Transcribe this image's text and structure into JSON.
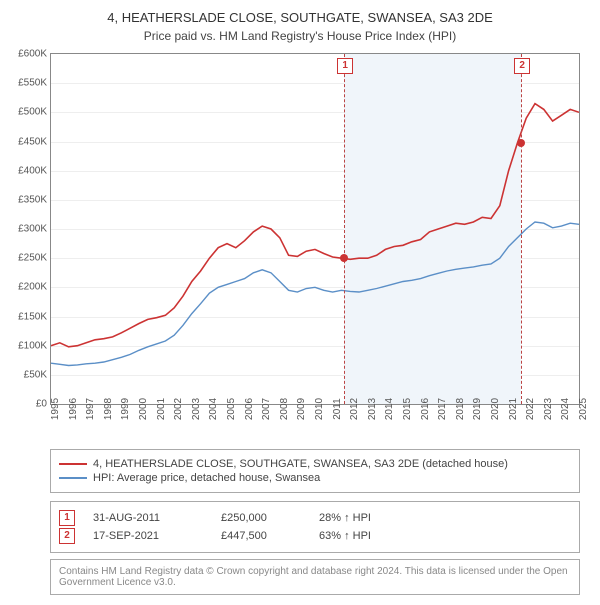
{
  "title": "4, HEATHERSLADE CLOSE, SOUTHGATE, SWANSEA, SA3 2DE",
  "subtitle": "Price paid vs. HM Land Registry's House Price Index (HPI)",
  "chart": {
    "type": "line",
    "xlim": [
      1995,
      2025
    ],
    "ylim": [
      0,
      600000
    ],
    "ytick_step": 50000,
    "y_ticks": [
      "£0",
      "£50K",
      "£100K",
      "£150K",
      "£200K",
      "£250K",
      "£300K",
      "£350K",
      "£400K",
      "£450K",
      "£500K",
      "£550K",
      "£600K"
    ],
    "x_labels": [
      "1995",
      "1996",
      "1997",
      "1998",
      "1999",
      "2000",
      "2001",
      "2002",
      "2003",
      "2004",
      "2005",
      "2006",
      "2007",
      "2008",
      "2009",
      "2010",
      "2011",
      "2012",
      "2013",
      "2014",
      "2015",
      "2016",
      "2017",
      "2018",
      "2019",
      "2020",
      "2021",
      "2022",
      "2023",
      "2024",
      "2025"
    ],
    "background_color": "#ffffff",
    "grid_color": "#eeeeee",
    "axis_color": "#888888",
    "highlight_band": {
      "x_start": 2011.66,
      "x_end": 2021.71,
      "color": "#f0f5fa"
    },
    "series": [
      {
        "name": "property",
        "label": "4, HEATHERSLADE CLOSE, SOUTHGATE, SWANSEA, SA3 2DE (detached house)",
        "color": "#cc3333",
        "line_width": 1.6,
        "points": [
          [
            1995,
            100000
          ],
          [
            1995.5,
            105000
          ],
          [
            1996,
            98000
          ],
          [
            1996.5,
            100000
          ],
          [
            1997,
            105000
          ],
          [
            1997.5,
            110000
          ],
          [
            1998,
            112000
          ],
          [
            1998.5,
            115000
          ],
          [
            1999,
            122000
          ],
          [
            1999.5,
            130000
          ],
          [
            2000,
            138000
          ],
          [
            2000.5,
            145000
          ],
          [
            2001,
            148000
          ],
          [
            2001.5,
            152000
          ],
          [
            2002,
            165000
          ],
          [
            2002.5,
            185000
          ],
          [
            2003,
            210000
          ],
          [
            2003.5,
            228000
          ],
          [
            2004,
            250000
          ],
          [
            2004.5,
            268000
          ],
          [
            2005,
            275000
          ],
          [
            2005.5,
            268000
          ],
          [
            2006,
            280000
          ],
          [
            2006.5,
            295000
          ],
          [
            2007,
            305000
          ],
          [
            2007.5,
            300000
          ],
          [
            2008,
            285000
          ],
          [
            2008.5,
            255000
          ],
          [
            2009,
            253000
          ],
          [
            2009.5,
            262000
          ],
          [
            2010,
            265000
          ],
          [
            2010.5,
            258000
          ],
          [
            2011,
            252000
          ],
          [
            2011.5,
            250000
          ],
          [
            2012,
            248000
          ],
          [
            2012.5,
            250000
          ],
          [
            2013,
            250000
          ],
          [
            2013.5,
            255000
          ],
          [
            2014,
            265000
          ],
          [
            2014.5,
            270000
          ],
          [
            2015,
            272000
          ],
          [
            2015.5,
            278000
          ],
          [
            2016,
            282000
          ],
          [
            2016.5,
            295000
          ],
          [
            2017,
            300000
          ],
          [
            2017.5,
            305000
          ],
          [
            2018,
            310000
          ],
          [
            2018.5,
            308000
          ],
          [
            2019,
            312000
          ],
          [
            2019.5,
            320000
          ],
          [
            2020,
            318000
          ],
          [
            2020.5,
            340000
          ],
          [
            2021,
            400000
          ],
          [
            2021.5,
            447500
          ],
          [
            2022,
            490000
          ],
          [
            2022.5,
            515000
          ],
          [
            2023,
            505000
          ],
          [
            2023.5,
            485000
          ],
          [
            2024,
            495000
          ],
          [
            2024.5,
            505000
          ],
          [
            2025,
            500000
          ]
        ]
      },
      {
        "name": "hpi",
        "label": "HPI: Average price, detached house, Swansea",
        "color": "#5b8fc7",
        "line_width": 1.4,
        "points": [
          [
            1995,
            70000
          ],
          [
            1995.5,
            68000
          ],
          [
            1996,
            66000
          ],
          [
            1996.5,
            67000
          ],
          [
            1997,
            69000
          ],
          [
            1997.5,
            70000
          ],
          [
            1998,
            72000
          ],
          [
            1998.5,
            76000
          ],
          [
            1999,
            80000
          ],
          [
            1999.5,
            85000
          ],
          [
            2000,
            92000
          ],
          [
            2000.5,
            98000
          ],
          [
            2001,
            103000
          ],
          [
            2001.5,
            108000
          ],
          [
            2002,
            118000
          ],
          [
            2002.5,
            135000
          ],
          [
            2003,
            155000
          ],
          [
            2003.5,
            172000
          ],
          [
            2004,
            190000
          ],
          [
            2004.5,
            200000
          ],
          [
            2005,
            205000
          ],
          [
            2005.5,
            210000
          ],
          [
            2006,
            215000
          ],
          [
            2006.5,
            225000
          ],
          [
            2007,
            230000
          ],
          [
            2007.5,
            225000
          ],
          [
            2008,
            210000
          ],
          [
            2008.5,
            195000
          ],
          [
            2009,
            192000
          ],
          [
            2009.5,
            198000
          ],
          [
            2010,
            200000
          ],
          [
            2010.5,
            195000
          ],
          [
            2011,
            192000
          ],
          [
            2011.5,
            195000
          ],
          [
            2012,
            193000
          ],
          [
            2012.5,
            192000
          ],
          [
            2013,
            195000
          ],
          [
            2013.5,
            198000
          ],
          [
            2014,
            202000
          ],
          [
            2014.5,
            206000
          ],
          [
            2015,
            210000
          ],
          [
            2015.5,
            212000
          ],
          [
            2016,
            215000
          ],
          [
            2016.5,
            220000
          ],
          [
            2017,
            224000
          ],
          [
            2017.5,
            228000
          ],
          [
            2018,
            231000
          ],
          [
            2018.5,
            233000
          ],
          [
            2019,
            235000
          ],
          [
            2019.5,
            238000
          ],
          [
            2020,
            240000
          ],
          [
            2020.5,
            250000
          ],
          [
            2021,
            270000
          ],
          [
            2021.5,
            285000
          ],
          [
            2022,
            300000
          ],
          [
            2022.5,
            312000
          ],
          [
            2023,
            310000
          ],
          [
            2023.5,
            302000
          ],
          [
            2024,
            305000
          ],
          [
            2024.5,
            310000
          ],
          [
            2025,
            308000
          ]
        ]
      }
    ],
    "markers": [
      {
        "num": "1",
        "x": 2011.66,
        "y": 250000
      },
      {
        "num": "2",
        "x": 2021.71,
        "y": 447500
      }
    ],
    "label_fontsize": 10,
    "title_fontsize": 13
  },
  "legend": {
    "items": [
      {
        "color": "#cc3333",
        "label": "4, HEATHERSLADE CLOSE, SOUTHGATE, SWANSEA, SA3 2DE (detached house)"
      },
      {
        "color": "#5b8fc7",
        "label": "HPI: Average price, detached house, Swansea"
      }
    ]
  },
  "transactions": [
    {
      "num": "1",
      "date": "31-AUG-2011",
      "price": "£250,000",
      "pct": "28% ↑ HPI"
    },
    {
      "num": "2",
      "date": "17-SEP-2021",
      "price": "£447,500",
      "pct": "63% ↑ HPI"
    }
  ],
  "footer": "Contains HM Land Registry data © Crown copyright and database right 2024. This data is licensed under the Open Government Licence v3.0."
}
